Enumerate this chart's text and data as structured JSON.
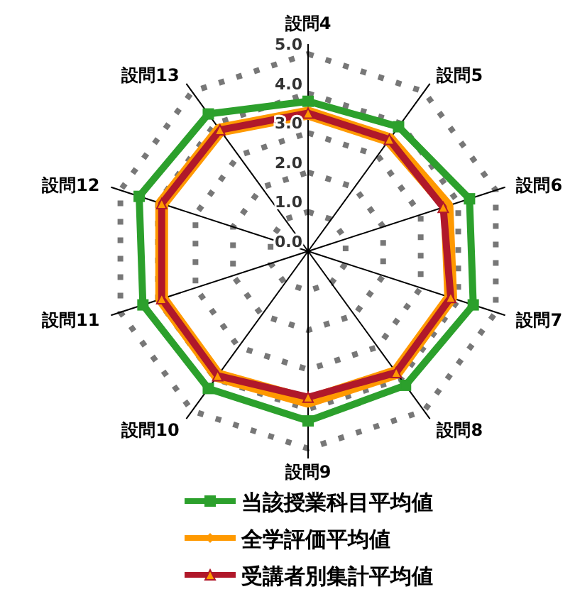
{
  "chart_data": {
    "type": "radar",
    "categories": [
      "設問4",
      "設問5",
      "設問6",
      "設問7",
      "設問8",
      "設問9",
      "設問10",
      "設問11",
      "設問12",
      "設問13"
    ],
    "ylim": [
      0,
      5
    ],
    "yticks": [
      {
        "value": 0,
        "label": "0.0"
      },
      {
        "value": 1,
        "label": "1.0"
      },
      {
        "value": 2,
        "label": "2.0"
      },
      {
        "value": 3,
        "label": "3.0"
      },
      {
        "value": 4,
        "label": "4.0"
      },
      {
        "value": 5,
        "label": "5.0"
      }
    ],
    "grid": true,
    "legend": "bottom",
    "series": [
      {
        "name": "当該授業科目平均値",
        "color": "#2ca02c",
        "marker": "square",
        "values": [
          3.8,
          3.9,
          4.3,
          4.4,
          4.2,
          4.3,
          4.3,
          4.4,
          4.5,
          4.3
        ]
      },
      {
        "name": "全学評価平均値",
        "color": "#ff9900",
        "marker": "diamond",
        "values": [
          3.5,
          3.5,
          3.7,
          3.8,
          3.8,
          3.8,
          3.9,
          3.9,
          3.9,
          3.8
        ]
      },
      {
        "name": "受講者別集計平均値",
        "color": "#b0182a",
        "marker": "triangle",
        "values": [
          3.5,
          3.5,
          3.6,
          3.8,
          3.8,
          3.7,
          3.9,
          3.9,
          3.9,
          3.8
        ]
      }
    ]
  }
}
